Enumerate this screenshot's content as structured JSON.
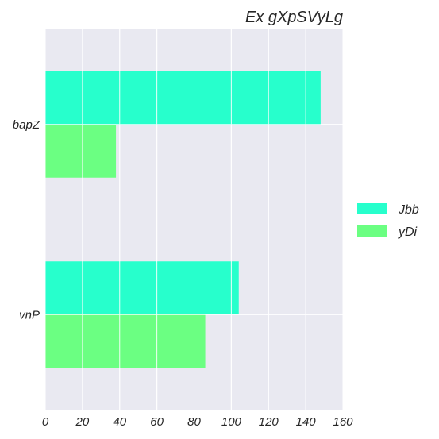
{
  "chart_data": {
    "type": "bar",
    "orientation": "horizontal",
    "title": "Ex gXpSVyLg",
    "xlabel": "",
    "ylabel": "",
    "categories": [
      "bapZ",
      "vnP"
    ],
    "series": [
      {
        "name": "Jbb",
        "values": [
          148,
          104
        ],
        "color": "#27ffcc"
      },
      {
        "name": "yDi",
        "values": [
          38,
          86
        ],
        "color": "#6bff82"
      }
    ],
    "xlim": [
      0,
      160
    ],
    "xticks": [
      "0",
      "20",
      "40",
      "60",
      "80",
      "100",
      "120",
      "140",
      "160"
    ],
    "grid": true,
    "background": "#e9e9f1",
    "legend_position": "right"
  }
}
